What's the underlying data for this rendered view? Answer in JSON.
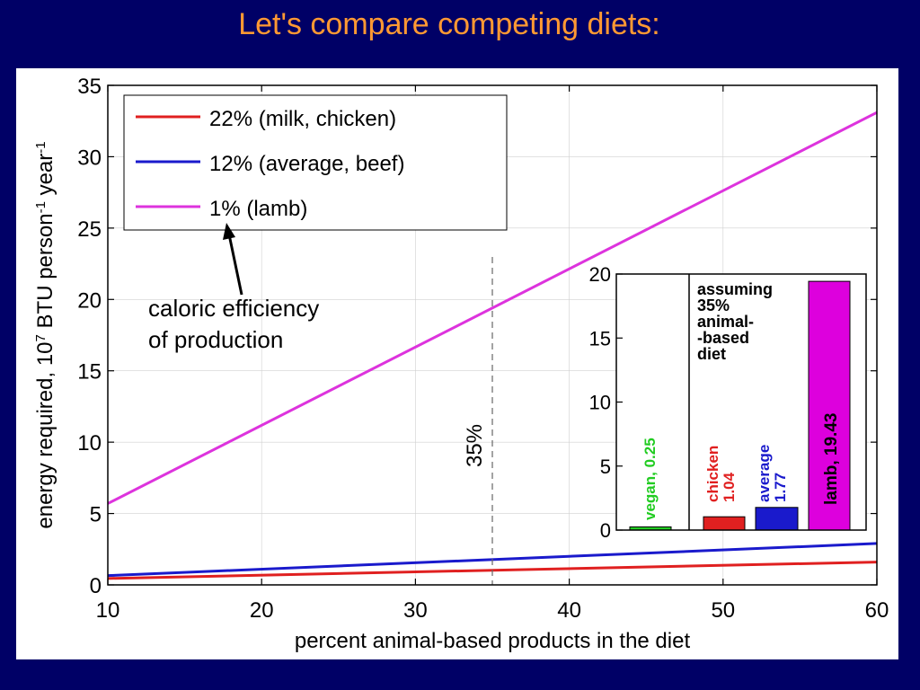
{
  "slide": {
    "title": "Let's compare competing diets:"
  },
  "chart_data": [
    {
      "type": "line",
      "x": [
        10,
        60
      ],
      "series": [
        {
          "name": "22% (milk, chicken)",
          "color": "#e02020",
          "values": [
            0.45,
            1.6
          ]
        },
        {
          "name": "12% (average, beef)",
          "color": "#1a1acc",
          "values": [
            0.65,
            2.9
          ]
        },
        {
          "name": "1% (lamb)",
          "color": "#dd33dd",
          "values": [
            5.7,
            33.1
          ]
        }
      ],
      "xlim": [
        10,
        60
      ],
      "ylim": [
        0,
        35
      ],
      "xticks": [
        10,
        20,
        30,
        40,
        50,
        60
      ],
      "yticks": [
        0,
        5,
        10,
        15,
        20,
        25,
        30,
        35
      ],
      "xlabel": "percent animal-based products in the diet",
      "ylabel": {
        "p1": "energy required, 10",
        "s1": "7",
        "p2": " BTU person",
        "s2": "-1",
        "p3": " year",
        "s3": "-1"
      },
      "legend_position": "top-left",
      "marker": {
        "x": 35,
        "label": "35%"
      },
      "annotation": {
        "line1": "caloric efficiency",
        "line2": "of production"
      }
    },
    {
      "type": "bar",
      "categories": [
        "vegan",
        "chicken",
        "average",
        "lamb"
      ],
      "values": [
        0.25,
        1.04,
        1.77,
        19.43
      ],
      "colors": [
        "#22cc22",
        "#e02020",
        "#1a1acc",
        "#dd00dd"
      ],
      "labels": [
        {
          "name": "vegan",
          "value": "0.25",
          "text": "vegan, 0.25",
          "color": "#22cc22"
        },
        {
          "name": "chicken",
          "value": "1.04",
          "line1": "chicken",
          "line2": "1.04",
          "color": "#e02020"
        },
        {
          "name": "average",
          "value": "1.77",
          "line1": "average",
          "line2": "1.77",
          "color": "#1a1acc"
        },
        {
          "name": "lamb",
          "value": "19.43",
          "text": "lamb, 19.43",
          "color": "#000000"
        }
      ],
      "ylim": [
        0,
        20
      ],
      "yticks": [
        0,
        5,
        10,
        15,
        20
      ],
      "note_lines": [
        "assuming",
        "35%",
        "animal-",
        "-based",
        "diet"
      ]
    }
  ]
}
